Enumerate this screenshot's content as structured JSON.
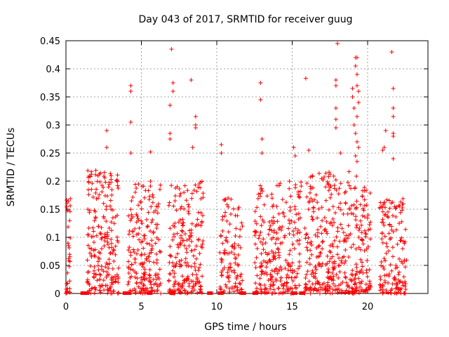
{
  "chart_data": {
    "type": "scatter",
    "title": "Day 043 of 2017, SRMTID for receiver guug",
    "xlabel": "GPS time / hours",
    "ylabel": "SRMTID / TECUs",
    "xlim": [
      0,
      24
    ],
    "ylim": [
      0,
      0.45
    ],
    "xticks": [
      0,
      5,
      10,
      15,
      20
    ],
    "xtick_labels": [
      "0",
      "5",
      "10",
      "15",
      "20"
    ],
    "yticks": [
      0,
      0.05,
      0.1,
      0.15,
      0.2,
      0.25,
      0.3,
      0.35,
      0.4,
      0.45
    ],
    "ytick_labels": [
      "0",
      "0.05",
      "0.1",
      "0.15",
      "0.2",
      "0.25",
      "0.3",
      "0.35",
      "0.4",
      "0.45"
    ],
    "grid": true,
    "marker": "+",
    "color": "#ff0000",
    "clusters": [
      {
        "x_range": [
          0.0,
          0.3
        ],
        "count": 35,
        "y_max": 0.17
      },
      {
        "x_range": [
          1.4,
          3.5
        ],
        "count": 220,
        "y_max": 0.22
      },
      {
        "x_range": [
          4.1,
          6.3
        ],
        "count": 200,
        "y_max": 0.2
      },
      {
        "x_range": [
          6.8,
          9.1
        ],
        "count": 210,
        "y_max": 0.2
      },
      {
        "x_range": [
          10.2,
          11.7
        ],
        "count": 110,
        "y_max": 0.17
      },
      {
        "x_range": [
          12.5,
          15.6
        ],
        "count": 260,
        "y_max": 0.2
      },
      {
        "x_range": [
          15.8,
          19.3
        ],
        "count": 330,
        "y_max": 0.22
      },
      {
        "x_range": [
          19.4,
          20.2
        ],
        "count": 80,
        "y_max": 0.2
      },
      {
        "x_range": [
          20.8,
          22.6
        ],
        "count": 150,
        "y_max": 0.17
      }
    ],
    "outliers": [
      {
        "x": 2.7,
        "y": 0.29
      },
      {
        "x": 2.7,
        "y": 0.26
      },
      {
        "x": 4.3,
        "y": 0.37
      },
      {
        "x": 4.3,
        "y": 0.36
      },
      {
        "x": 4.3,
        "y": 0.305
      },
      {
        "x": 4.3,
        "y": 0.25
      },
      {
        "x": 5.6,
        "y": 0.252
      },
      {
        "x": 7.0,
        "y": 0.435
      },
      {
        "x": 7.1,
        "y": 0.375
      },
      {
        "x": 7.1,
        "y": 0.36
      },
      {
        "x": 6.9,
        "y": 0.335
      },
      {
        "x": 6.9,
        "y": 0.285
      },
      {
        "x": 6.9,
        "y": 0.275
      },
      {
        "x": 8.3,
        "y": 0.38
      },
      {
        "x": 8.6,
        "y": 0.315
      },
      {
        "x": 8.6,
        "y": 0.3
      },
      {
        "x": 8.6,
        "y": 0.295
      },
      {
        "x": 8.4,
        "y": 0.26
      },
      {
        "x": 10.3,
        "y": 0.265
      },
      {
        "x": 10.3,
        "y": 0.25
      },
      {
        "x": 12.9,
        "y": 0.375
      },
      {
        "x": 12.9,
        "y": 0.345
      },
      {
        "x": 13.0,
        "y": 0.275
      },
      {
        "x": 13.0,
        "y": 0.25
      },
      {
        "x": 15.1,
        "y": 0.26
      },
      {
        "x": 15.2,
        "y": 0.245
      },
      {
        "x": 15.9,
        "y": 0.383
      },
      {
        "x": 16.1,
        "y": 0.255
      },
      {
        "x": 18.0,
        "y": 0.445
      },
      {
        "x": 17.9,
        "y": 0.38
      },
      {
        "x": 17.9,
        "y": 0.37
      },
      {
        "x": 17.9,
        "y": 0.33
      },
      {
        "x": 17.9,
        "y": 0.31
      },
      {
        "x": 17.9,
        "y": 0.295
      },
      {
        "x": 18.2,
        "y": 0.25
      },
      {
        "x": 19.0,
        "y": 0.365
      },
      {
        "x": 19.0,
        "y": 0.35
      },
      {
        "x": 19.1,
        "y": 0.33
      },
      {
        "x": 19.2,
        "y": 0.42
      },
      {
        "x": 19.3,
        "y": 0.42
      },
      {
        "x": 19.2,
        "y": 0.405
      },
      {
        "x": 19.3,
        "y": 0.39
      },
      {
        "x": 19.3,
        "y": 0.37
      },
      {
        "x": 19.4,
        "y": 0.36
      },
      {
        "x": 19.4,
        "y": 0.34
      },
      {
        "x": 19.3,
        "y": 0.315
      },
      {
        "x": 19.1,
        "y": 0.3
      },
      {
        "x": 19.2,
        "y": 0.285
      },
      {
        "x": 19.3,
        "y": 0.27
      },
      {
        "x": 19.4,
        "y": 0.26
      },
      {
        "x": 19.2,
        "y": 0.245
      },
      {
        "x": 19.3,
        "y": 0.235
      },
      {
        "x": 21.6,
        "y": 0.43
      },
      {
        "x": 21.7,
        "y": 0.365
      },
      {
        "x": 21.7,
        "y": 0.33
      },
      {
        "x": 21.7,
        "y": 0.315
      },
      {
        "x": 21.7,
        "y": 0.285
      },
      {
        "x": 21.7,
        "y": 0.28
      },
      {
        "x": 21.2,
        "y": 0.29
      },
      {
        "x": 21.1,
        "y": 0.26
      },
      {
        "x": 21.0,
        "y": 0.255
      },
      {
        "x": 21.7,
        "y": 0.24
      }
    ],
    "baseline_markers_x": [
      1.1,
      1.2,
      1.3,
      1.4,
      3.9,
      4.0,
      4.1,
      4.2,
      5.5,
      5.6,
      7.0,
      7.1,
      9.5,
      9.6,
      10.2,
      10.3,
      11.7,
      11.8,
      12.5,
      12.6,
      15.1,
      15.2,
      15.6,
      15.7
    ]
  }
}
